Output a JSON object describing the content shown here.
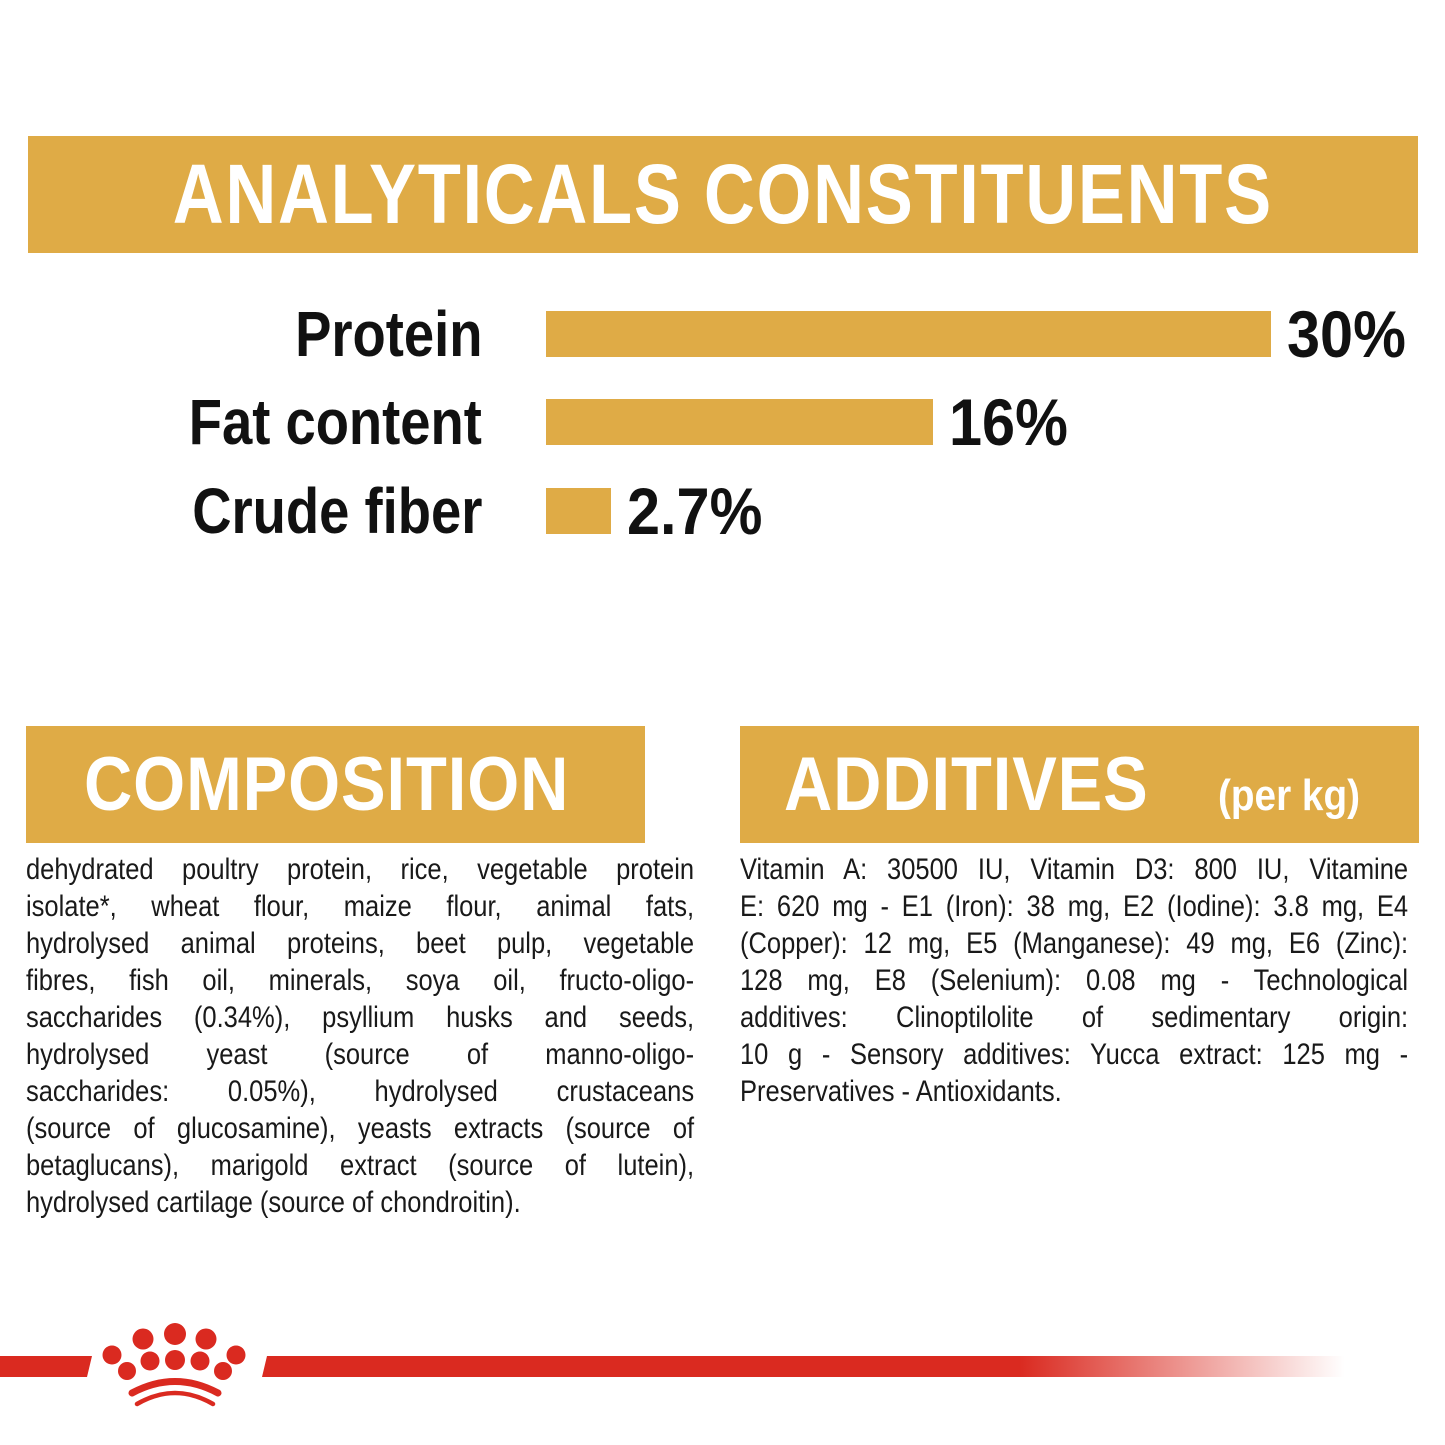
{
  "colors": {
    "gold": "#DFAB46",
    "red": "#DA2A20",
    "text_dark": "#191919",
    "header_text": "#FFFFFF"
  },
  "analyticals": {
    "title": "ANALYTICALS CONSTITUENTS"
  },
  "chart_data": {
    "type": "bar",
    "orientation": "horizontal",
    "title": "ANALYTICALS CONSTITUENTS",
    "categories": [
      "Protein",
      "Fat content",
      "Crude fiber"
    ],
    "values": [
      30,
      16,
      2.7
    ],
    "value_labels": [
      "30%",
      "16%",
      "2.7%"
    ],
    "unit": "%",
    "xlim": [
      0,
      30
    ],
    "bar_color": "#DFAB46",
    "grid": false,
    "legend": false
  },
  "composition": {
    "title": "COMPOSITION",
    "lines": [
      "dehydrated poultry protein, rice, vegetable protein",
      "isolate*, wheat flour, maize flour, animal fats,",
      "hydrolysed animal proteins, beet pulp, vegetable",
      "fibres, fish oil, minerals, soya oil, fructo-oligo-",
      "saccharides (0.34%), psyllium husks and seeds,",
      "hydrolysed yeast (source of manno-oligo-",
      "saccharides: 0.05%), hydrolysed crustaceans",
      "(source of glucosamine), yeasts extracts (source of",
      "betaglucans), marigold extract (source of lutein),",
      "hydrolysed cartilage (source of chondroitin)."
    ]
  },
  "additives": {
    "title": "ADDITIVES",
    "suffix": "(per kg)",
    "lines": [
      "Vitamin A: 30500 IU, Vitamin D3: 800 IU, Vitamine",
      "E: 620 mg - E1 (Iron): 38 mg, E2 (Iodine): 3.8 mg, E4",
      "(Copper): 12 mg, E5 (Manganese): 49 mg, E6 (Zinc):",
      "128 mg, E8 (Selenium): 0.08 mg - Technological",
      "additives: Clinoptilolite of sedimentary origin:",
      "10 g - Sensory additives: Yucca extract: 125 mg -",
      "Preservatives - Antioxidants."
    ]
  },
  "footer": {
    "logo": "royal-canin-crown"
  }
}
